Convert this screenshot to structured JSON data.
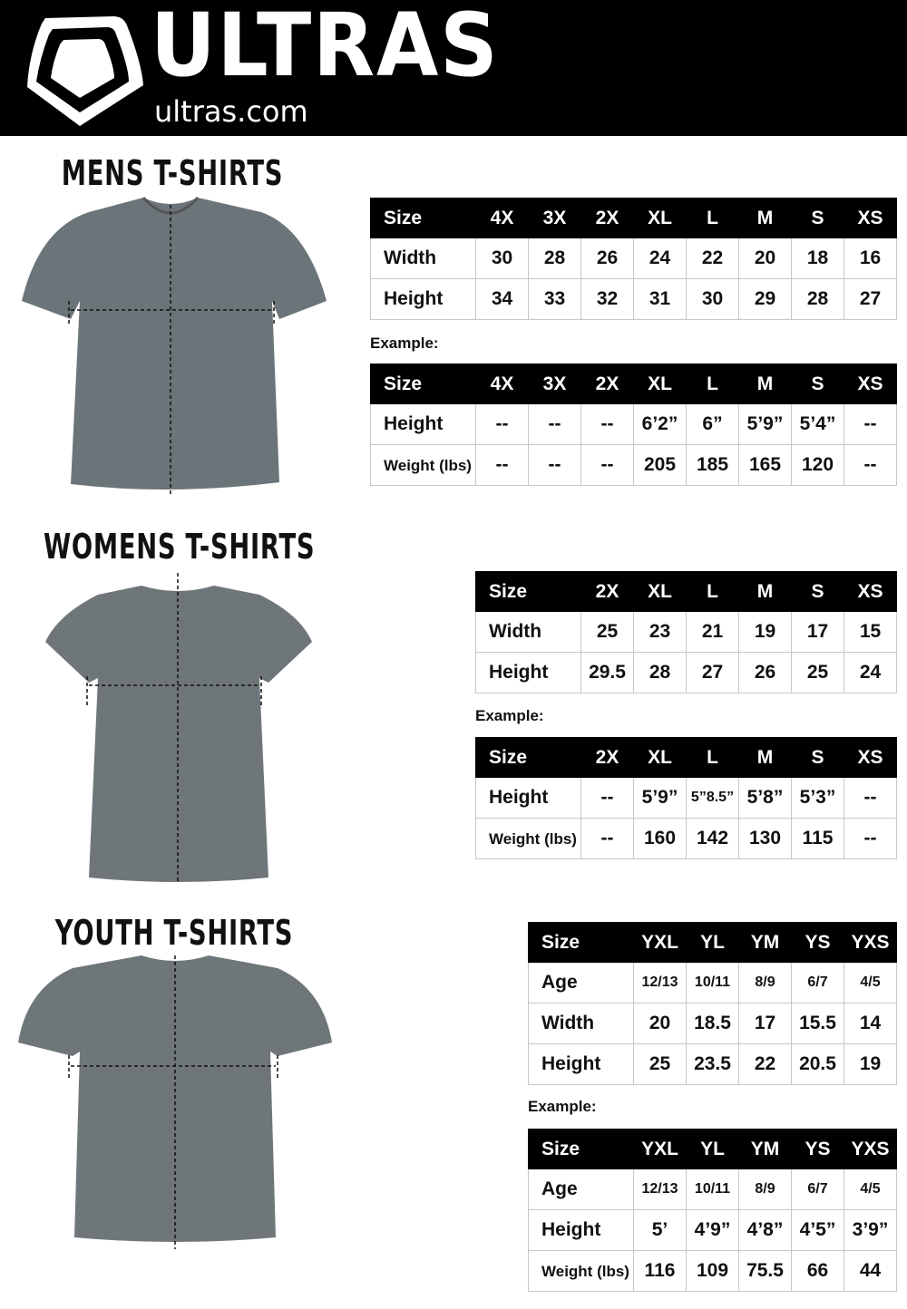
{
  "header": {
    "brand": "ULTRAS",
    "site": "ultras.com"
  },
  "example_label": "Example:",
  "sections": [
    {
      "title": "MENS T-SHIRTS",
      "tables": [
        {
          "rows": [
            [
              "Size",
              "4X",
              "3X",
              "2X",
              "XL",
              "L",
              "M",
              "S",
              "XS"
            ],
            [
              "Width",
              "30",
              "28",
              "26",
              "24",
              "22",
              "20",
              "18",
              "16"
            ],
            [
              "Height",
              "34",
              "33",
              "32",
              "31",
              "30",
              "29",
              "28",
              "27"
            ]
          ]
        },
        {
          "rows": [
            [
              "Size",
              "4X",
              "3X",
              "2X",
              "XL",
              "L",
              "M",
              "S",
              "XS"
            ],
            [
              "Height",
              "--",
              "--",
              "--",
              "6’2”",
              "6”",
              "5’9”",
              "5’4”",
              "--"
            ],
            [
              "Weight (lbs)",
              "--",
              "--",
              "--",
              "205",
              "185",
              "165",
              "120",
              "--"
            ]
          ]
        }
      ]
    },
    {
      "title": "WOMENS T-SHIRTS",
      "tables": [
        {
          "rows": [
            [
              "Size",
              "2X",
              "XL",
              "L",
              "M",
              "S",
              "XS"
            ],
            [
              "Width",
              "25",
              "23",
              "21",
              "19",
              "17",
              "15"
            ],
            [
              "Height",
              "29.5",
              "28",
              "27",
              "26",
              "25",
              "24"
            ]
          ]
        },
        {
          "rows": [
            [
              "Size",
              "2X",
              "XL",
              "L",
              "M",
              "S",
              "XS"
            ],
            [
              "Height",
              "--",
              "5’9”",
              "5”8.5”",
              "5’8”",
              "5’3”",
              "--"
            ],
            [
              "Weight (lbs)",
              "--",
              "160",
              "142",
              "130",
              "115",
              "--"
            ]
          ]
        }
      ]
    },
    {
      "title": "YOUTH T-SHIRTS",
      "tables": [
        {
          "rows": [
            [
              "Size",
              "YXL",
              "YL",
              "YM",
              "YS",
              "YXS"
            ],
            [
              "Age",
              "12/13",
              "10/11",
              "8/9",
              "6/7",
              "4/5"
            ],
            [
              "Width",
              "20",
              "18.5",
              "17",
              "15.5",
              "14"
            ],
            [
              "Height",
              "25",
              "23.5",
              "22",
              "20.5",
              "19"
            ]
          ]
        },
        {
          "rows": [
            [
              "Size",
              "YXL",
              "YL",
              "YM",
              "YS",
              "YXS"
            ],
            [
              "Age",
              "12/13",
              "10/11",
              "8/9",
              "6/7",
              "4/5"
            ],
            [
              "Height",
              "5’",
              "4’9”",
              "4’8”",
              "4’5”",
              "3’9”"
            ],
            [
              "Weight (lbs)",
              "116",
              "109",
              "75.5",
              "66",
              "44"
            ]
          ]
        }
      ]
    }
  ]
}
